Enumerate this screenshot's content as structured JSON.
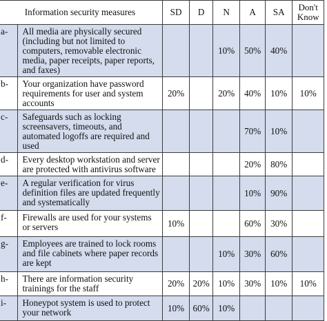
{
  "table": {
    "headers": [
      "Information security measures",
      "SD",
      "D",
      "N",
      "A",
      "SA",
      "Don't Know"
    ],
    "rows": [
      {
        "label": "a-",
        "text": "All media are physically secured (including but not limited to computers, removable electronic media, paper receipts, paper reports, and faxes)",
        "values": [
          "",
          "",
          "10%",
          "50%",
          "40%",
          ""
        ]
      },
      {
        "label": "b-",
        "text": "Your organization have password requirements for user and system accounts",
        "values": [
          "20%",
          "",
          "20%",
          "40%",
          "10%",
          "10%"
        ]
      },
      {
        "label": "c-",
        "text": "Safeguards such as locking screensavers, timeouts, and automated logoffs are required and used",
        "values": [
          "",
          "",
          "",
          "70%",
          "10%",
          ""
        ]
      },
      {
        "label": "d-",
        "text": "Every desktop workstation and server are protected with antivirus software",
        "values": [
          "",
          "",
          "",
          "20%",
          "80%",
          ""
        ]
      },
      {
        "label": "e-",
        "text": "A regular verification for virus definition files are updated frequently and systematically",
        "values": [
          "",
          "",
          "",
          "10%",
          "90%",
          ""
        ]
      },
      {
        "label": "f-",
        "text": "Firewalls are used for your systems or servers",
        "values": [
          "10%",
          "",
          "",
          "60%",
          "30%",
          ""
        ]
      },
      {
        "label": "g-",
        "text": "Employees are trained to lock rooms and file cabinets where paper records are kept",
        "values": [
          "",
          "",
          "10%",
          "30%",
          "60%",
          ""
        ]
      },
      {
        "label": "h-",
        "text": "There are information security trainings for the staff",
        "values": [
          "20%",
          "20%",
          "10%",
          "30%",
          "10%",
          "10%"
        ]
      },
      {
        "label": "i-",
        "text": "Honeypot system is used to protect your network",
        "values": [
          "10%",
          "60%",
          "10%",
          "",
          "",
          ""
        ]
      }
    ]
  },
  "colors": {
    "shaded_row": "#d4dced",
    "border": "#3b3b3b"
  }
}
